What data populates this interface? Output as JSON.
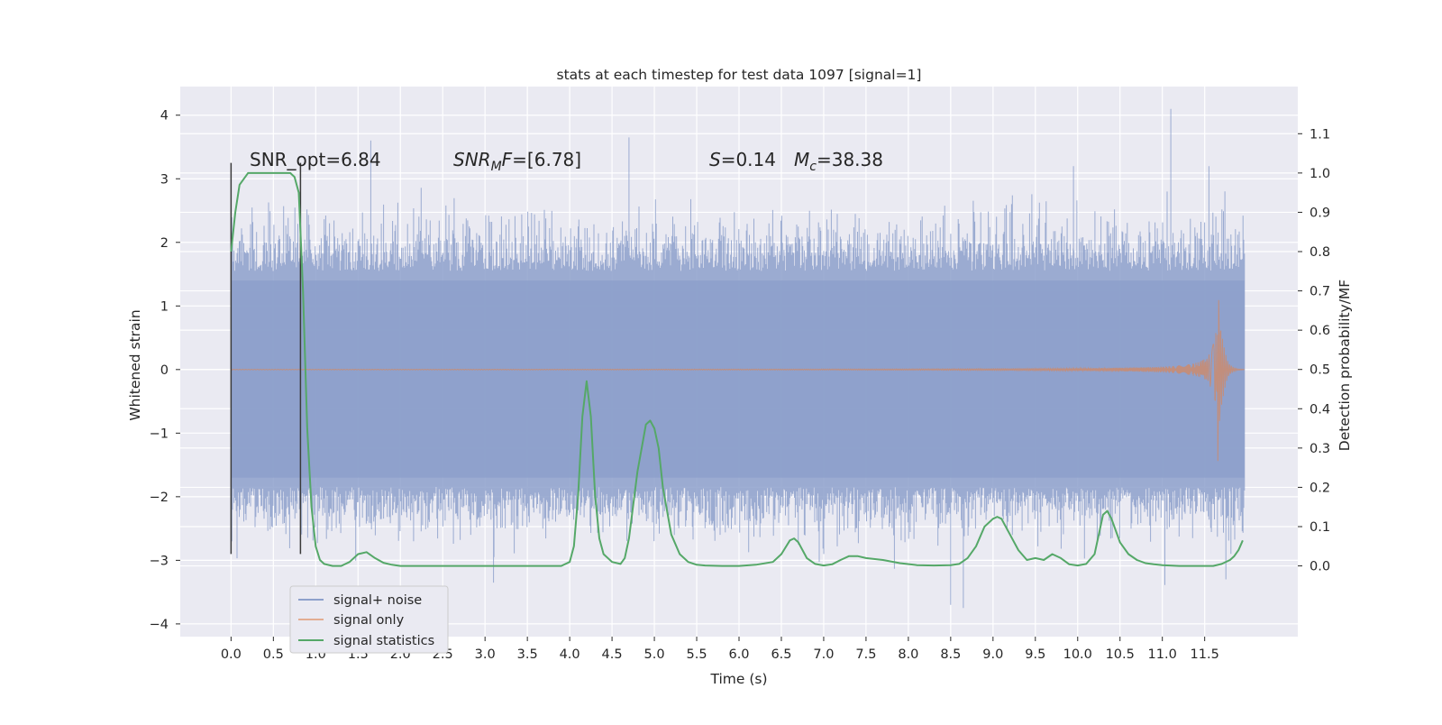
{
  "chart_data": {
    "type": "line",
    "title": "stats at each timestep for test data 1097 [signal=1]",
    "xlabel": "Time (s)",
    "ylabel_left": "Whitened strain",
    "ylabel_right": "Detection probability/MF",
    "x_ticks": [
      "0.0",
      "0.5",
      "1.0",
      "1.5",
      "2.0",
      "2.5",
      "3.0",
      "3.5",
      "4.0",
      "4.5",
      "5.0",
      "5.5",
      "6.0",
      "6.5",
      "7.0",
      "7.5",
      "8.0",
      "8.5",
      "9.0",
      "9.5",
      "10.0",
      "10.5",
      "11.0",
      "11.5"
    ],
    "y_left_ticks": [
      "4",
      "3",
      "2",
      "1",
      "0",
      "−1",
      "−2",
      "−3",
      "−4"
    ],
    "y_right_ticks": [
      "1.1",
      "1.0",
      "0.9",
      "0.8",
      "0.7",
      "0.6",
      "0.5",
      "0.4",
      "0.3",
      "0.2",
      "0.1",
      "0.0"
    ],
    "xlim": [
      -0.6,
      12.6
    ],
    "ylim_left": [
      -4.2,
      4.45
    ],
    "ylim_right": [
      -0.18,
      1.22
    ],
    "annotations": {
      "snr_opt": "SNR_opt=6.84",
      "snr_mf_label": "SNR",
      "snr_mf_sub": "M",
      "snr_mf_mid": "F",
      "snr_mf_value": "=[6.78]",
      "s_label": "S",
      "s_value": "=0.14",
      "mc_label": "M",
      "mc_sub": "c",
      "mc_value": "=38.38"
    },
    "legend": {
      "placement": "lower-left",
      "entries": [
        {
          "name": "signal+ noise",
          "color": "#8da0cb"
        },
        {
          "name": "signal only",
          "color": "#dd8452"
        },
        {
          "name": "signal statistics",
          "color": "#55a868"
        }
      ]
    },
    "window_markers": [
      0.0,
      0.82
    ],
    "series": [
      {
        "name": "signal+ noise",
        "color": "#8da0cb",
        "axis": "left",
        "x_range": [
          0.0,
          11.97
        ],
        "core_band": [
          -1.7,
          1.4
        ],
        "envelope_max": 4.1,
        "envelope_min": -3.75
      },
      {
        "name": "signal only",
        "color": "#dd8452",
        "axis": "left",
        "chirp_peak_time": 11.65,
        "peak_amplitude": 1.75
      },
      {
        "name": "signal statistics",
        "color": "#55a868",
        "axis": "right",
        "x": [
          0.0,
          0.05,
          0.1,
          0.2,
          0.3,
          0.4,
          0.5,
          0.6,
          0.7,
          0.75,
          0.8,
          0.85,
          0.9,
          0.95,
          1.0,
          1.05,
          1.1,
          1.2,
          1.3,
          1.4,
          1.5,
          1.6,
          1.7,
          1.8,
          1.9,
          2.0,
          2.2,
          2.5,
          3.0,
          3.5,
          3.9,
          4.0,
          4.05,
          4.1,
          4.15,
          4.2,
          4.25,
          4.3,
          4.35,
          4.4,
          4.5,
          4.6,
          4.65,
          4.7,
          4.8,
          4.9,
          4.95,
          5.0,
          5.05,
          5.1,
          5.2,
          5.3,
          5.4,
          5.5,
          5.6,
          5.8,
          6.0,
          6.2,
          6.4,
          6.5,
          6.6,
          6.65,
          6.7,
          6.75,
          6.8,
          6.9,
          7.0,
          7.1,
          7.2,
          7.3,
          7.4,
          7.5,
          7.7,
          7.9,
          8.1,
          8.3,
          8.5,
          8.6,
          8.7,
          8.8,
          8.9,
          9.0,
          9.05,
          9.1,
          9.15,
          9.2,
          9.3,
          9.4,
          9.5,
          9.6,
          9.7,
          9.8,
          9.9,
          10.0,
          10.1,
          10.2,
          10.3,
          10.35,
          10.4,
          10.45,
          10.5,
          10.6,
          10.7,
          10.8,
          10.9,
          11.0,
          11.2,
          11.4,
          11.6,
          11.7,
          11.8,
          11.85,
          11.9,
          11.95
        ],
        "values": [
          0.8,
          0.9,
          0.97,
          1.0,
          1.0,
          1.0,
          1.0,
          1.0,
          1.0,
          0.99,
          0.95,
          0.7,
          0.35,
          0.15,
          0.05,
          0.015,
          0.005,
          0.0,
          0.0,
          0.01,
          0.03,
          0.035,
          0.02,
          0.008,
          0.003,
          0.0,
          0.0,
          0.0,
          0.0,
          0.0,
          0.0,
          0.01,
          0.05,
          0.18,
          0.38,
          0.47,
          0.38,
          0.18,
          0.07,
          0.03,
          0.01,
          0.005,
          0.02,
          0.07,
          0.24,
          0.36,
          0.37,
          0.35,
          0.3,
          0.2,
          0.08,
          0.03,
          0.01,
          0.003,
          0.001,
          0.0,
          0.0,
          0.003,
          0.01,
          0.03,
          0.065,
          0.07,
          0.06,
          0.04,
          0.02,
          0.005,
          0.001,
          0.004,
          0.015,
          0.025,
          0.025,
          0.02,
          0.015,
          0.007,
          0.002,
          0.001,
          0.002,
          0.005,
          0.02,
          0.05,
          0.1,
          0.12,
          0.125,
          0.12,
          0.1,
          0.08,
          0.04,
          0.015,
          0.02,
          0.015,
          0.03,
          0.02,
          0.004,
          0.001,
          0.005,
          0.03,
          0.13,
          0.14,
          0.12,
          0.09,
          0.06,
          0.03,
          0.015,
          0.007,
          0.004,
          0.002,
          0.0,
          0.0,
          0.0,
          0.005,
          0.015,
          0.025,
          0.04,
          0.065
        ]
      }
    ]
  }
}
